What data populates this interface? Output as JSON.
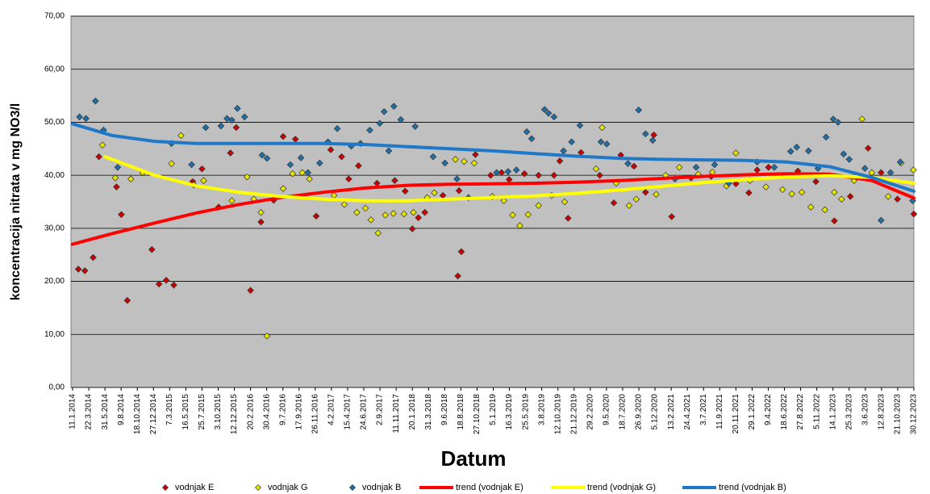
{
  "chart_data": {
    "type": "scatter",
    "y_label": "koncentracija nitrata v mg NO3/l",
    "x_label": "Datum",
    "grid": true,
    "legend": "bottom",
    "xlim": [
      "2014-01-11",
      "2023-12-30"
    ],
    "xticks": [
      {
        "value": "2014-01-11",
        "label": "11.1.2014"
      },
      {
        "value": "2014-03-22",
        "label": "22.3.2014"
      },
      {
        "value": "2014-05-31",
        "label": "31.5.2014"
      },
      {
        "value": "2014-08-09",
        "label": "9.8.2014"
      },
      {
        "value": "2014-10-18",
        "label": "18.10.2014"
      },
      {
        "value": "2014-12-27",
        "label": "27.12.2014"
      },
      {
        "value": "2015-03-07",
        "label": "7.3.2015"
      },
      {
        "value": "2015-05-16",
        "label": "16.5.2015"
      },
      {
        "value": "2015-07-25",
        "label": "25.7.2015"
      },
      {
        "value": "2015-10-03",
        "label": "3.10.2015"
      },
      {
        "value": "2015-12-12",
        "label": "12.12.2015"
      },
      {
        "value": "2016-02-20",
        "label": "20.2.2016"
      },
      {
        "value": "2016-04-30",
        "label": "30.4.2016"
      },
      {
        "value": "2016-07-09",
        "label": "9.7.2016"
      },
      {
        "value": "2016-09-17",
        "label": "17.9.2016"
      },
      {
        "value": "2016-11-26",
        "label": "26.11.2016"
      },
      {
        "value": "2017-02-04",
        "label": "4.2.2017"
      },
      {
        "value": "2017-04-15",
        "label": "15.4.2017"
      },
      {
        "value": "2017-06-24",
        "label": "24.6.2017"
      },
      {
        "value": "2017-09-02",
        "label": "2.9.2017"
      },
      {
        "value": "2017-11-11",
        "label": "11.11.2017"
      },
      {
        "value": "2018-01-20",
        "label": "20.1.2018"
      },
      {
        "value": "2018-03-31",
        "label": "31.3.2018"
      },
      {
        "value": "2018-06-09",
        "label": "9.6.2018"
      },
      {
        "value": "2018-08-18",
        "label": "18.8.2018"
      },
      {
        "value": "2018-10-27",
        "label": "27.10.2018"
      },
      {
        "value": "2019-01-05",
        "label": "5.1.2019"
      },
      {
        "value": "2019-03-16",
        "label": "16.3.2019"
      },
      {
        "value": "2019-05-25",
        "label": "25.5.2019"
      },
      {
        "value": "2019-08-03",
        "label": "3.8.2019"
      },
      {
        "value": "2019-10-12",
        "label": "12.10.2019"
      },
      {
        "value": "2019-12-21",
        "label": "21.12.2019"
      },
      {
        "value": "2020-02-29",
        "label": "29.2.2020"
      },
      {
        "value": "2020-05-09",
        "label": "9.5.2020"
      },
      {
        "value": "2020-07-18",
        "label": "18.7.2020"
      },
      {
        "value": "2020-09-26",
        "label": "26.9.2020"
      },
      {
        "value": "2020-12-05",
        "label": "5.12.2020"
      },
      {
        "value": "2021-02-13",
        "label": "13.2.2021"
      },
      {
        "value": "2021-04-24",
        "label": "24.4.2021"
      },
      {
        "value": "2021-07-03",
        "label": "3.7.2021"
      },
      {
        "value": "2021-09-11",
        "label": "11.9.2021"
      },
      {
        "value": "2021-11-20",
        "label": "20.11.2021"
      },
      {
        "value": "2022-01-29",
        "label": "29.1.2022"
      },
      {
        "value": "2022-04-09",
        "label": "9.4.2022"
      },
      {
        "value": "2022-06-18",
        "label": "18.6.2022"
      },
      {
        "value": "2022-08-27",
        "label": "27.8.2022"
      },
      {
        "value": "2022-11-05",
        "label": "5.11.2022"
      },
      {
        "value": "2023-01-14",
        "label": "14.1.2023"
      },
      {
        "value": "2023-03-25",
        "label": "25.3.2023"
      },
      {
        "value": "2023-06-03",
        "label": "3.6.2023"
      },
      {
        "value": "2023-08-12",
        "label": "12.8.2023"
      },
      {
        "value": "2023-10-21",
        "label": "21.10.2023"
      },
      {
        "value": "2023-12-30",
        "label": "30.12.2023"
      }
    ],
    "ylim": [
      0,
      70
    ],
    "yticks": [
      {
        "value": 0,
        "label": "0,00"
      },
      {
        "value": 10,
        "label": "10,00"
      },
      {
        "value": 20,
        "label": "20,00"
      },
      {
        "value": 30,
        "label": "30,00"
      },
      {
        "value": 40,
        "label": "40,00"
      },
      {
        "value": 50,
        "label": "50,00"
      },
      {
        "value": 60,
        "label": "60,00"
      },
      {
        "value": 70,
        "label": "70,00"
      }
    ],
    "series": [
      {
        "name": "vodnjak E",
        "type": "scatter",
        "color": "#cc0000",
        "x": [
          "2014-02-05",
          "2014-03-05",
          "2014-04-10",
          "2014-05-05",
          "2014-07-20",
          "2014-08-10",
          "2014-09-05",
          "2014-12-20",
          "2015-01-20",
          "2015-02-20",
          "2015-03-25",
          "2015-06-15",
          "2015-07-25",
          "2015-10-05",
          "2015-11-25",
          "2015-12-20",
          "2016-02-20",
          "2016-04-05",
          "2016-05-30",
          "2016-07-10",
          "2016-09-01",
          "2016-11-30",
          "2017-02-01",
          "2017-03-20",
          "2017-04-20",
          "2017-06-01",
          "2017-08-20",
          "2017-11-05",
          "2017-12-20",
          "2018-01-20",
          "2018-02-15",
          "2018-03-15",
          "2018-06-01",
          "2018-08-05",
          "2018-08-20",
          "2018-08-10",
          "2018-10-20",
          "2018-12-25",
          "2019-02-10",
          "2019-03-15",
          "2019-05-20",
          "2019-07-20",
          "2019-09-25",
          "2019-10-20",
          "2019-11-25",
          "2020-01-20",
          "2020-04-10",
          "2020-06-10",
          "2020-07-10",
          "2020-09-05",
          "2020-10-25",
          "2020-11-30",
          "2021-02-15",
          "2021-05-10",
          "2021-08-05",
          "2021-11-20",
          "2022-01-15",
          "2022-02-20",
          "2022-04-10",
          "2022-08-15",
          "2022-11-01",
          "2023-01-20",
          "2023-03-30",
          "2023-06-15",
          "2023-08-10",
          "2023-10-20",
          "2023-12-30"
        ],
        "values": [
          22.3,
          22,
          24.5,
          43.5,
          37.8,
          32.6,
          16.4,
          26,
          19.5,
          20.2,
          19.3,
          38.8,
          41.2,
          34,
          44.2,
          49,
          18.3,
          31.2,
          35.3,
          47.3,
          46.8,
          32.3,
          44.8,
          43.5,
          39.3,
          41.8,
          38.5,
          39,
          37,
          29.9,
          32,
          33,
          36.2,
          21,
          25.6,
          37.1,
          43.9,
          40,
          40.5,
          39.2,
          40.3,
          40,
          40,
          42.7,
          31.9,
          44.3,
          40,
          34.8,
          43.8,
          41.7,
          36.8,
          47.6,
          32.2,
          39.5,
          39.8,
          38.4,
          36.7,
          41,
          41.5,
          40.8,
          38.8,
          31.4,
          36,
          45.1,
          40.5,
          35.5,
          32.7
        ]
      },
      {
        "name": "vodnjak G",
        "type": "scatter",
        "color": "#e6e600",
        "x": [
          "2014-05-20",
          "2014-07-15",
          "2014-09-20",
          "2014-11-10",
          "2015-03-15",
          "2015-04-25",
          "2015-06-20",
          "2015-08-01",
          "2015-12-01",
          "2016-02-05",
          "2016-03-05",
          "2016-04-05",
          "2016-05-01",
          "2016-07-10",
          "2016-08-20",
          "2016-10-01",
          "2016-11-01",
          "2017-02-15",
          "2017-04-01",
          "2017-05-25",
          "2017-07-01",
          "2017-07-25",
          "2017-08-25",
          "2017-09-25",
          "2017-10-30",
          "2017-12-15",
          "2018-01-25",
          "2018-03-25",
          "2018-04-25",
          "2018-07-25",
          "2018-09-01",
          "2018-10-15",
          "2019-01-01",
          "2019-02-20",
          "2019-03-30",
          "2019-04-30",
          "2019-06-05",
          "2019-07-20",
          "2019-09-15",
          "2019-11-10",
          "2020-03-25",
          "2020-04-20",
          "2020-06-20",
          "2020-08-15",
          "2020-09-15",
          "2020-12-10",
          "2021-01-20",
          "2021-03-20",
          "2021-06-10",
          "2021-08-10",
          "2021-10-10",
          "2021-11-20",
          "2022-01-20",
          "2022-03-30",
          "2022-06-10",
          "2022-07-20",
          "2022-09-01",
          "2022-10-10",
          "2022-12-10",
          "2023-01-20",
          "2023-02-20",
          "2023-04-15",
          "2023-05-20",
          "2023-07-01",
          "2023-09-10",
          "2023-11-05",
          "2023-12-28"
        ],
        "values": [
          45.7,
          39.5,
          39.3,
          40.5,
          42.2,
          47.5,
          38.2,
          39,
          35.2,
          39.7,
          35.5,
          33,
          9.7,
          37.5,
          40.3,
          40.5,
          39.3,
          36.2,
          34.5,
          33,
          33.8,
          31.6,
          29.1,
          32.5,
          32.8,
          32.7,
          33,
          35.8,
          36.7,
          43,
          42.6,
          42.3,
          36,
          35.2,
          32.5,
          30.5,
          32.6,
          34.3,
          36.2,
          35,
          41.2,
          49,
          38.5,
          34.3,
          35.5,
          36.4,
          40,
          41.5,
          40.2,
          40.6,
          38,
          44.2,
          39,
          37.8,
          37.3,
          36.5,
          36.8,
          34,
          33.5,
          36.8,
          35.5,
          39,
          50.6,
          40.5,
          36,
          42.3,
          41
        ]
      },
      {
        "name": "vodnjak B",
        "type": "scatter",
        "color": "#1f6fa8",
        "x": [
          "2014-02-10",
          "2014-03-10",
          "2014-04-20",
          "2014-05-25",
          "2014-07-25",
          "2015-03-15",
          "2015-06-10",
          "2015-08-10",
          "2015-10-15",
          "2015-11-10",
          "2015-12-01",
          "2015-12-25",
          "2016-01-25",
          "2016-04-10",
          "2016-05-01",
          "2016-08-10",
          "2016-09-25",
          "2016-10-25",
          "2016-12-15",
          "2017-01-20",
          "2017-03-01",
          "2017-05-01",
          "2017-06-10",
          "2017-07-20",
          "2017-09-01",
          "2017-09-20",
          "2017-10-10",
          "2017-11-01",
          "2017-12-01",
          "2018-02-01",
          "2018-04-20",
          "2018-06-10",
          "2018-08-01",
          "2018-09-20",
          "2019-01-20",
          "2019-03-10",
          "2019-04-15",
          "2019-05-30",
          "2019-06-20",
          "2019-08-15",
          "2019-09-01",
          "2019-09-25",
          "2019-11-05",
          "2019-12-10",
          "2020-01-15",
          "2020-04-15",
          "2020-05-10",
          "2020-08-10",
          "2020-09-25",
          "2020-10-25",
          "2020-11-25",
          "2021-03-01",
          "2021-06-01",
          "2021-08-20",
          "2021-10-20",
          "2022-02-20",
          "2022-05-05",
          "2022-07-15",
          "2022-08-10",
          "2022-09-30",
          "2022-11-10",
          "2022-12-15",
          "2023-01-15",
          "2023-02-05",
          "2023-03-01",
          "2023-03-25",
          "2023-06-01",
          "2023-08-10",
          "2023-09-20",
          "2023-11-01",
          "2023-12-25"
        ],
        "values": [
          51,
          50.7,
          54,
          48.5,
          41.5,
          46,
          42,
          49,
          49.3,
          50.7,
          50.4,
          52.6,
          51,
          43.8,
          43.2,
          42,
          43.3,
          40.5,
          42.3,
          46.3,
          48.8,
          45.5,
          46,
          48.5,
          49.8,
          52,
          44.6,
          53,
          50.5,
          49.2,
          43.5,
          42.3,
          39.3,
          35.8,
          40.5,
          40.7,
          41,
          48.2,
          46.9,
          52.4,
          51.7,
          51,
          44.6,
          46.3,
          49.4,
          46.3,
          45.9,
          42.2,
          52.3,
          47.8,
          46.6,
          39.3,
          41.5,
          42,
          38.5,
          42.5,
          41.5,
          44.5,
          45.3,
          44.6,
          41.3,
          47.2,
          50.6,
          50,
          44,
          43,
          41.3,
          31.5,
          40.5,
          42.5,
          35.2
        ]
      },
      {
        "name": "trend (vodnjak E)",
        "type": "line",
        "color": "#ff0000",
        "x": [
          "2014-01-11",
          "2014-07-01",
          "2015-01-01",
          "2015-07-01",
          "2016-01-01",
          "2016-07-01",
          "2017-01-01",
          "2017-07-01",
          "2018-01-01",
          "2018-07-01",
          "2019-01-01",
          "2019-07-01",
          "2020-01-01",
          "2020-07-01",
          "2021-01-01",
          "2021-07-01",
          "2022-01-01",
          "2022-07-01",
          "2023-01-01",
          "2023-07-01",
          "2023-12-30"
        ],
        "values": [
          27,
          29,
          31,
          32.9,
          34.5,
          35.8,
          36.8,
          37.6,
          38.1,
          38.3,
          38.4,
          38.5,
          38.7,
          39,
          39.4,
          39.8,
          40.1,
          40.3,
          40.2,
          39,
          35.7
        ]
      },
      {
        "name": "trend (vodnjak G)",
        "type": "line",
        "color": "#ffff00",
        "x": [
          "2014-05-31",
          "2015-01-01",
          "2015-07-01",
          "2016-01-01",
          "2016-07-01",
          "2017-01-01",
          "2017-07-01",
          "2018-01-01",
          "2018-07-01",
          "2019-01-01",
          "2019-07-01",
          "2020-01-01",
          "2020-07-01",
          "2021-01-01",
          "2021-07-01",
          "2022-01-01",
          "2022-07-01",
          "2023-01-01",
          "2023-07-01",
          "2023-12-30"
        ],
        "values": [
          43.5,
          40,
          38,
          36.8,
          36,
          35.5,
          35.2,
          35.2,
          35.5,
          35.8,
          36.1,
          36.6,
          37.2,
          37.9,
          38.6,
          39.2,
          39.7,
          39.9,
          39.6,
          38.5
        ]
      },
      {
        "name": "trend (vodnjak B)",
        "type": "line",
        "color": "#1f78c8",
        "x": [
          "2014-01-11",
          "2014-07-01",
          "2015-01-01",
          "2015-07-01",
          "2016-01-01",
          "2017-01-01",
          "2017-07-01",
          "2018-01-01",
          "2018-07-01",
          "2019-01-01",
          "2019-07-01",
          "2020-01-01",
          "2020-07-01",
          "2021-01-01",
          "2021-07-01",
          "2022-01-01",
          "2022-07-01",
          "2023-01-01",
          "2023-07-01",
          "2023-12-30"
        ],
        "values": [
          49.7,
          47.5,
          46.4,
          46,
          46,
          46,
          45.8,
          45.4,
          45,
          44.6,
          44.1,
          43.6,
          43.2,
          43,
          42.9,
          42.8,
          42.5,
          41.6,
          39.6,
          37
        ]
      }
    ]
  }
}
